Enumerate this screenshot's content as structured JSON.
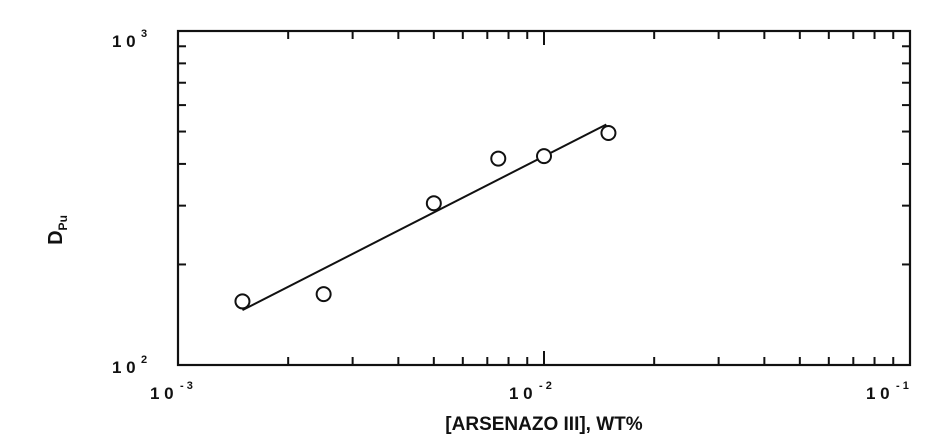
{
  "chart_data": {
    "type": "scatter",
    "title": "",
    "xlabel": "[ARSENAZO III], WT%",
    "ylabel_main": "D",
    "ylabel_sub": "Pu",
    "xscale": "log",
    "yscale": "log",
    "xlim": [
      0.001,
      0.1
    ],
    "ylim": [
      100,
      1000
    ],
    "grid": false,
    "x_ticks": [
      {
        "value": 0.001,
        "base": "1 0",
        "exp": "- 3"
      },
      {
        "value": 0.01,
        "base": "1 0",
        "exp": "- 2"
      },
      {
        "value": 0.1,
        "base": "1 0",
        "exp": "- 1"
      }
    ],
    "y_ticks": [
      {
        "value": 100,
        "base": "1 0",
        "exp": "2"
      },
      {
        "value": 1000,
        "base": "1 0",
        "exp": "3"
      }
    ],
    "series": [
      {
        "marker": "open-circle",
        "points": [
          {
            "x": 0.0015,
            "y": 155
          },
          {
            "x": 0.0025,
            "y": 163
          },
          {
            "x": 0.005,
            "y": 305
          },
          {
            "x": 0.0075,
            "y": 415
          },
          {
            "x": 0.01,
            "y": 422
          },
          {
            "x": 0.015,
            "y": 495
          }
        ]
      }
    ],
    "fit_line": {
      "x": [
        0.0015,
        0.0148
      ],
      "y": [
        146,
        525
      ]
    }
  }
}
